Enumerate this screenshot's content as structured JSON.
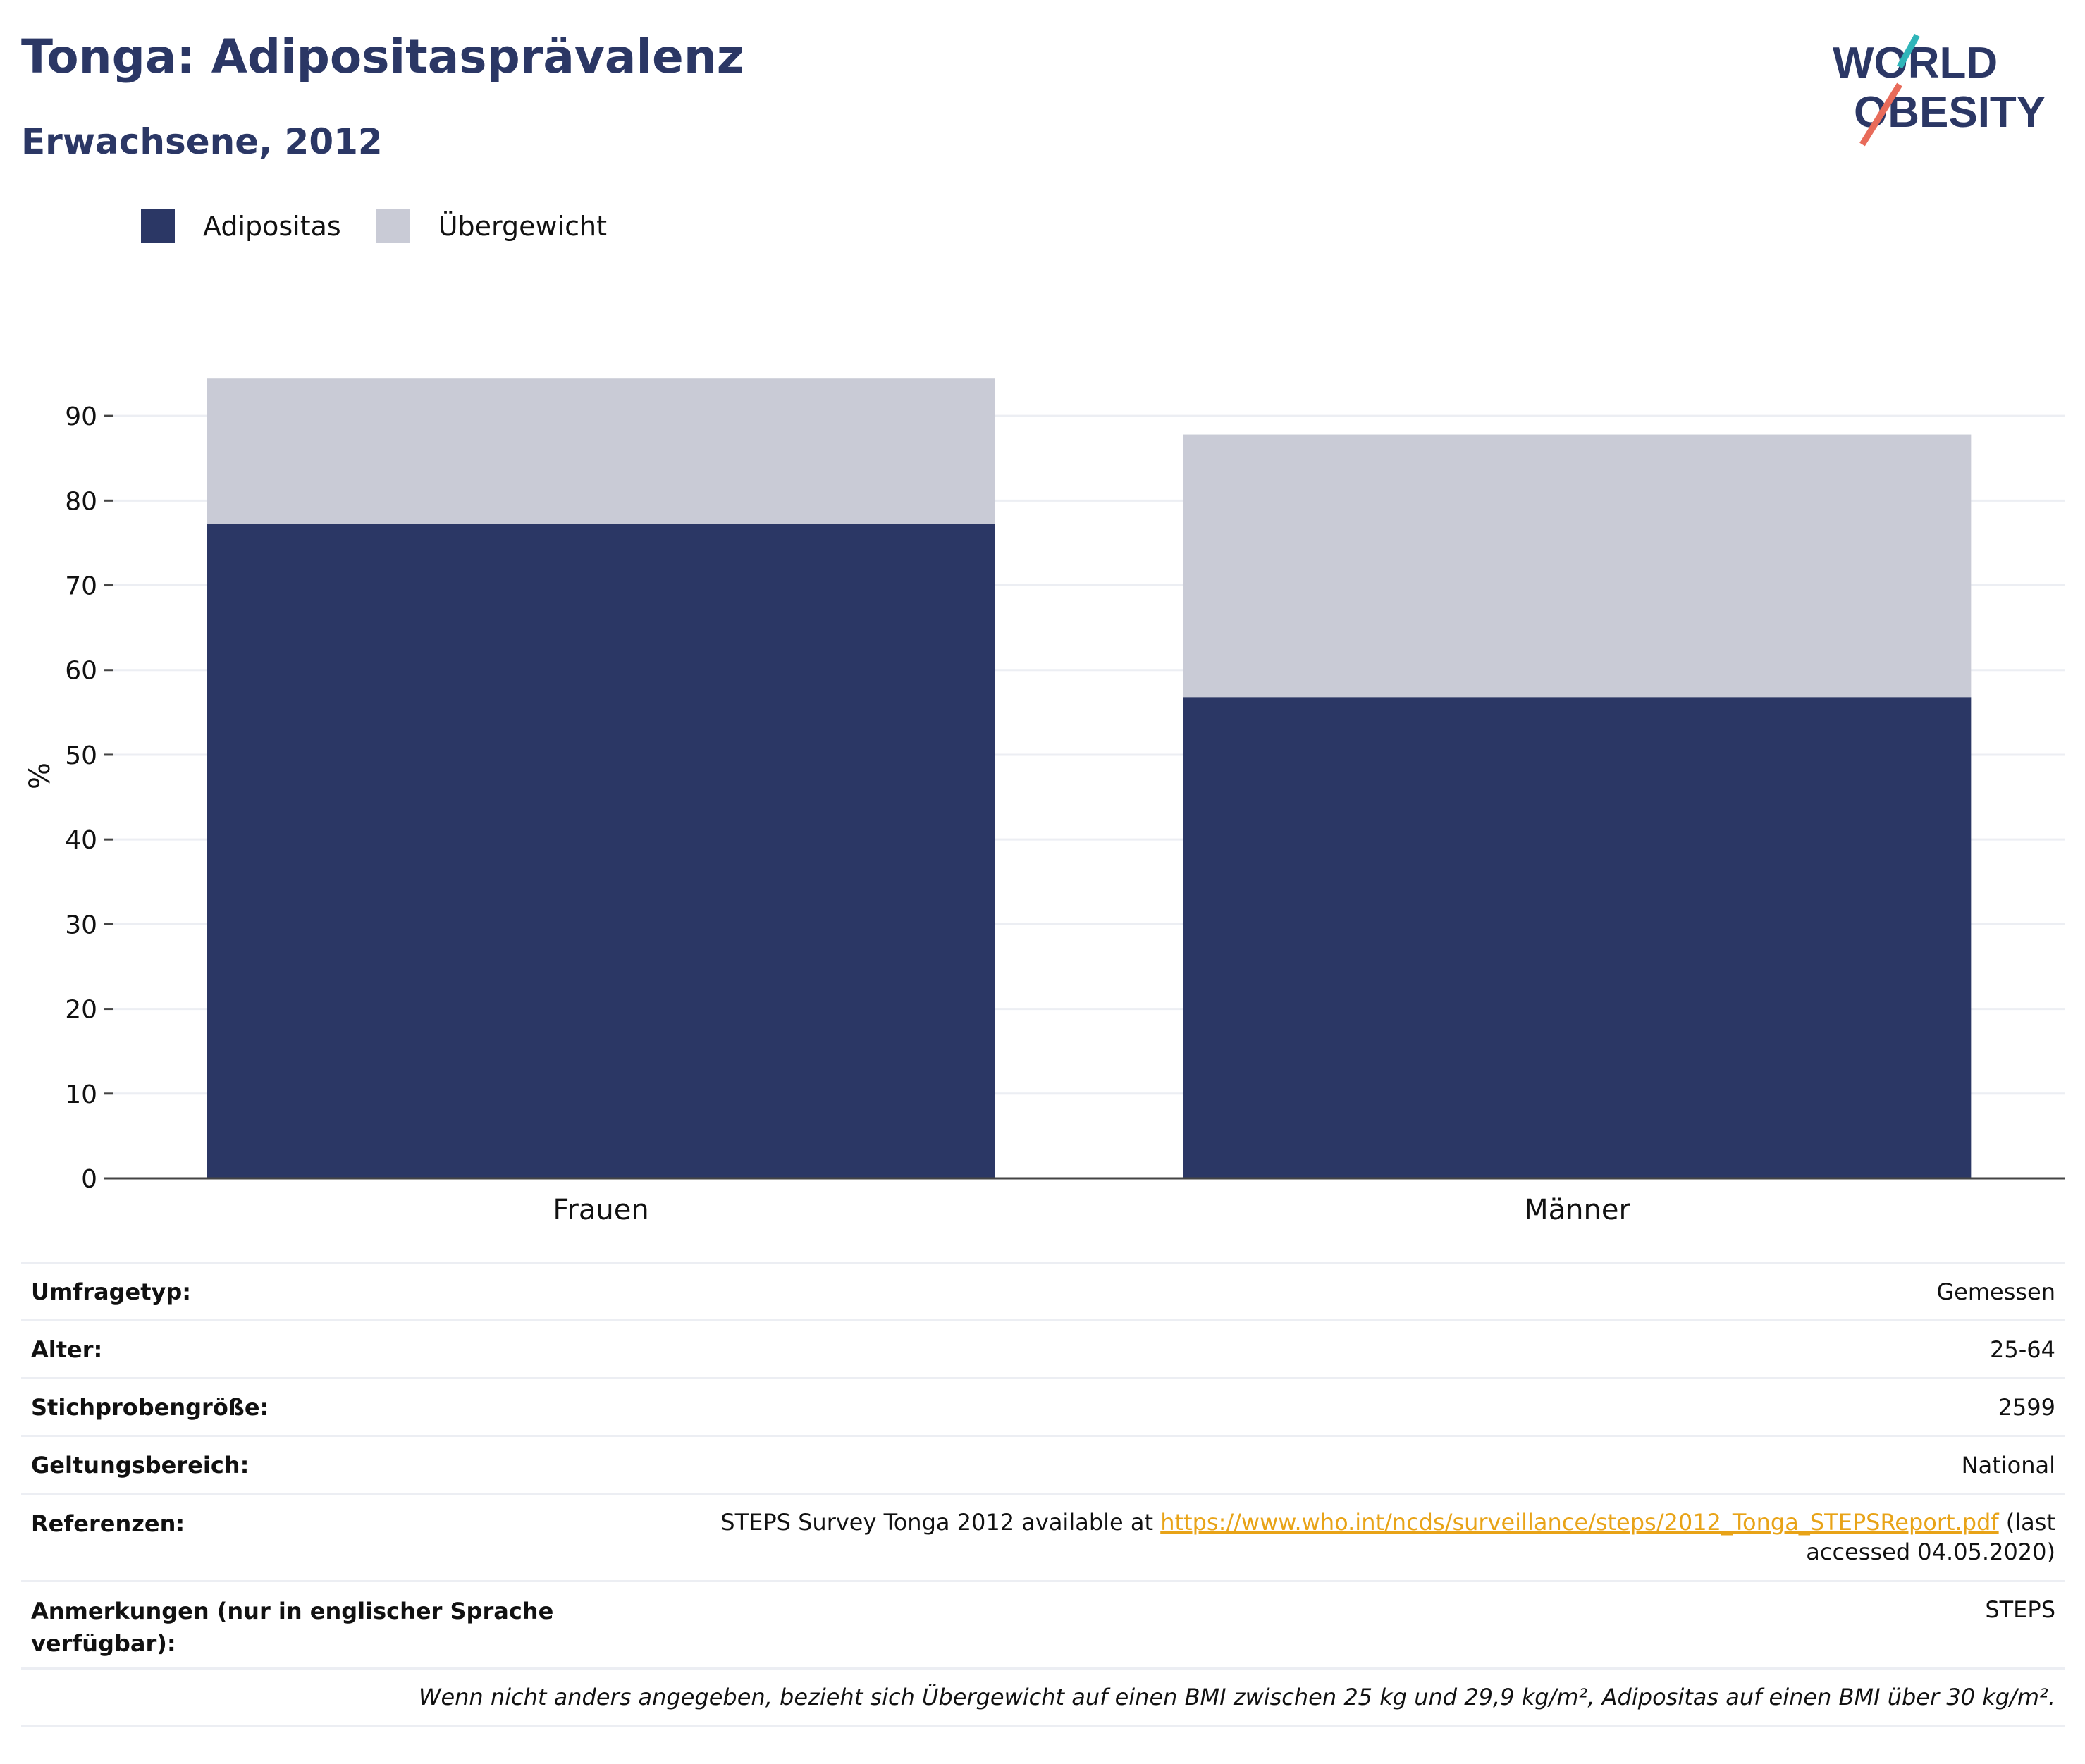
{
  "header": {
    "title": "Tonga: Adipositasprävalenz",
    "subtitle": "Erwachsene, 2012",
    "logo_line1": "WORLD",
    "logo_line2": "OBESITY"
  },
  "legend": [
    {
      "label": "Adipositas",
      "color": "#2b3765"
    },
    {
      "label": "Übergewicht",
      "color": "#c9cbd6"
    }
  ],
  "chart_data": {
    "type": "bar",
    "stacked": true,
    "categories": [
      "Frauen",
      "Männer"
    ],
    "series": [
      {
        "name": "Adipositas",
        "values": [
          77.2,
          56.8
        ],
        "color": "#2b3765"
      },
      {
        "name": "Übergewicht",
        "values": [
          17.2,
          31.0
        ],
        "color": "#c9cbd6"
      }
    ],
    "ylabel": "%",
    "xlabel": "",
    "ylim": [
      0,
      95
    ],
    "yticks": [
      0,
      10,
      20,
      30,
      40,
      50,
      60,
      70,
      80,
      90
    ],
    "grid": true,
    "legend_position": "top-left"
  },
  "meta": {
    "rows": [
      {
        "key": "Umfragetyp:",
        "value": "Gemessen"
      },
      {
        "key": "Alter:",
        "value": "25-64"
      },
      {
        "key": "Stichprobengröße:",
        "value": "2599"
      },
      {
        "key": "Geltungsbereich:",
        "value": "National"
      }
    ],
    "ref_key": "Referenzen:",
    "ref_prefix": "STEPS Survey Tonga 2012 available at ",
    "ref_link": "https://www.who.int/ncds/surveillance/steps/2012_Tonga_STEPSReport.pdf",
    "ref_suffix": " (last accessed 04.05.2020)",
    "notes_key": "Anmerkungen (nur in englischer Sprache verfügbar):",
    "notes_value": "STEPS",
    "footnote": "Wenn nicht anders angegeben, bezieht sich Übergewicht auf einen BMI zwischen 25 kg und 29,9 kg/m², Adipositas auf einen BMI über 30 kg/m²."
  }
}
